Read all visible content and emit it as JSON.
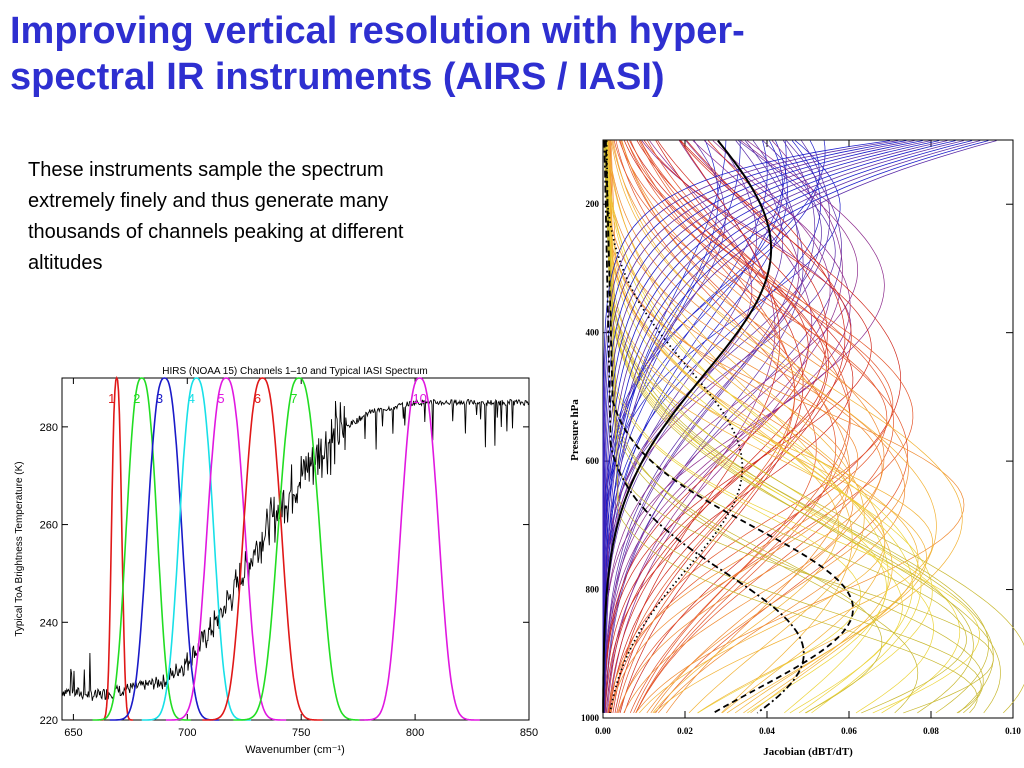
{
  "slide": {
    "title_line1": "Improving vertical resolution with hyper-",
    "title_line2": "spectral IR instruments (AIRS / IASI)",
    "body_line1": "These instruments sample the spectrum",
    "body_line2": "extremely finely and thus generate many",
    "body_line3": "thousands of channels peaking at different",
    "body_line4": "altitudes"
  },
  "colors": {
    "title": "#2e2fd0",
    "iasi_spectrum": "#000000",
    "jacobian_palette": [
      "#1c1cc8",
      "#5a2ca8",
      "#8c2a8c",
      "#d0281c",
      "#e4552a",
      "#f08a30",
      "#f2b235",
      "#ecd43a",
      "#c8b830"
    ]
  },
  "chart_data": [
    {
      "type": "line",
      "title": "HIRS (NOAA 15) Channels 1–10 and Typical IASI Spectrum",
      "xlabel": "Wavenumber (cm⁻¹)",
      "ylabel": "Typical ToA Brightness Temperature (K)",
      "xlim": [
        645,
        850
      ],
      "ylim": [
        220,
        290
      ],
      "x_ticks": [
        650,
        700,
        750,
        800,
        850
      ],
      "y_ticks": [
        220,
        240,
        260,
        280
      ],
      "channels": [
        {
          "label": "1",
          "center": 669,
          "width": 3,
          "color": "#e01818"
        },
        {
          "label": "2",
          "center": 680,
          "width": 9,
          "color": "#22dd22"
        },
        {
          "label": "3",
          "center": 690,
          "width": 10,
          "color": "#1a1ac8"
        },
        {
          "label": "4",
          "center": 704,
          "width": 10,
          "color": "#18e0e8"
        },
        {
          "label": "5",
          "center": 717,
          "width": 11,
          "color": "#e018e0"
        },
        {
          "label": "6",
          "center": 733,
          "width": 11,
          "color": "#e01818"
        },
        {
          "label": "7",
          "center": 749,
          "width": 12,
          "color": "#22dd22"
        },
        {
          "label": "10",
          "center": 802,
          "width": 11,
          "color": "#e018e0"
        }
      ],
      "spectrum_envelope": {
        "x": [
          645,
          660,
          670,
          680,
          690,
          700,
          710,
          720,
          730,
          740,
          750,
          760,
          770,
          780,
          790,
          800,
          810,
          820,
          830,
          840,
          850
        ],
        "y": [
          226,
          225,
          226,
          227,
          228,
          232,
          238,
          246,
          255,
          263,
          270,
          276,
          280,
          283,
          284,
          285,
          285,
          285,
          285,
          285,
          285
        ]
      }
    },
    {
      "type": "line",
      "title": "",
      "xlabel": "Jacobian (dBT/dT)",
      "ylabel": "Pressure hPa",
      "xlim": [
        0.0,
        0.1
      ],
      "ylim": [
        1000,
        100
      ],
      "x_ticks": [
        "0.00",
        "0.02",
        "0.04",
        "0.06",
        "0.08",
        "0.10"
      ],
      "y_ticks": [
        "200",
        "400",
        "600",
        "800",
        "1000"
      ],
      "series": [
        {
          "name": "thick-black",
          "style": "solid",
          "peak_x": 0.041,
          "peak_p": 270
        },
        {
          "name": "dashed-black",
          "style": "dashed",
          "peak_x": 0.061,
          "peak_p": 830
        },
        {
          "name": "dotted-black",
          "style": "dotted",
          "peak_x": 0.034,
          "peak_p": 610
        },
        {
          "name": "dashdot-black",
          "style": "dashdot",
          "peak_x": 0.049,
          "peak_p": 900
        }
      ]
    }
  ]
}
